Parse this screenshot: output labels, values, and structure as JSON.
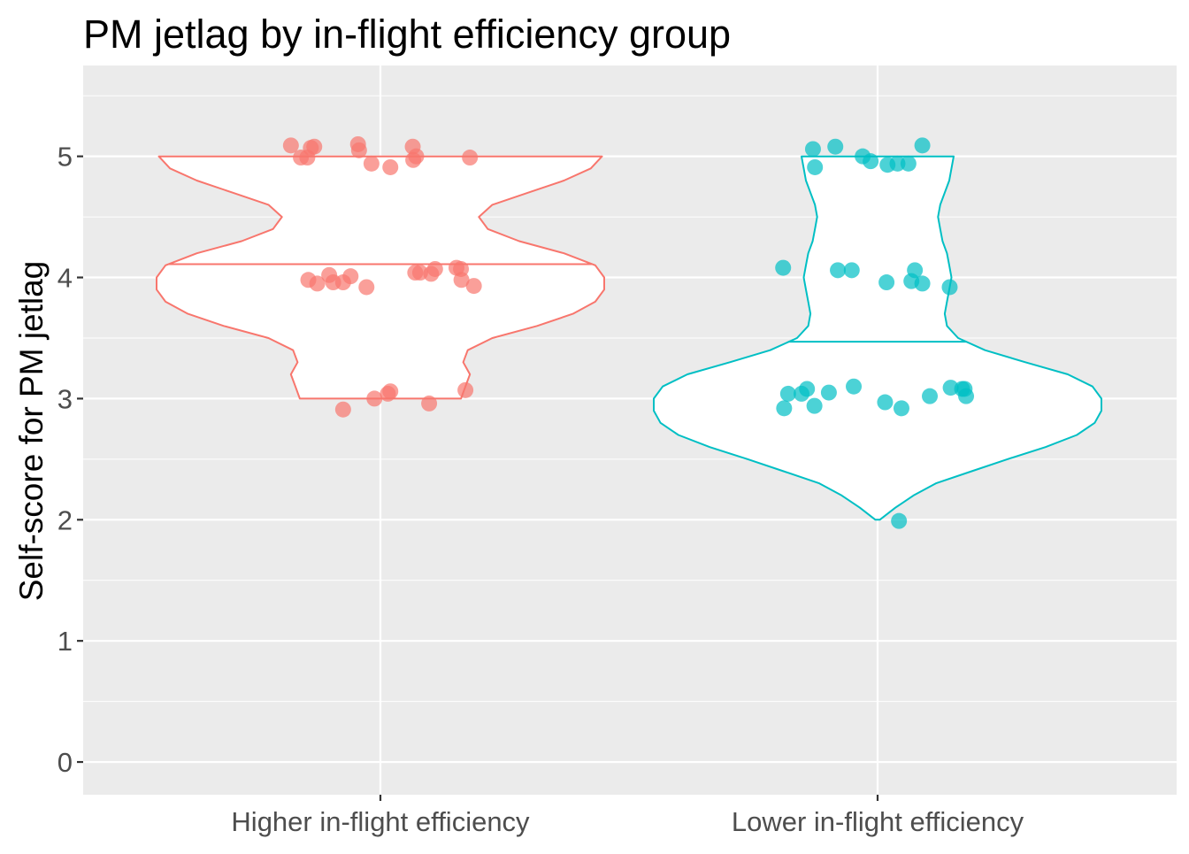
{
  "chart_data": {
    "type": "violin",
    "title": "PM jetlag by in-flight efficiency group",
    "xlabel": "",
    "ylabel": "Self-score for PM jetlag",
    "ylim": [
      -0.27,
      5.75
    ],
    "yticks": [
      0,
      1,
      2,
      3,
      4,
      5
    ],
    "categories": [
      "Higher in-flight efficiency",
      "Lower in-flight efficiency"
    ],
    "grid": true,
    "legend": "none",
    "series": [
      {
        "category": "Higher in-flight efficiency",
        "color": "#F8766D",
        "min": 3,
        "max": 5,
        "median": 4.11,
        "density_profile": [
          [
            3.0,
            0.36
          ],
          [
            3.1,
            0.38
          ],
          [
            3.2,
            0.4
          ],
          [
            3.3,
            0.37
          ],
          [
            3.4,
            0.39
          ],
          [
            3.5,
            0.5
          ],
          [
            3.6,
            0.7
          ],
          [
            3.7,
            0.86
          ],
          [
            3.8,
            0.96
          ],
          [
            3.9,
            1.0
          ],
          [
            4.0,
            1.0
          ],
          [
            4.1,
            0.96
          ],
          [
            4.2,
            0.82
          ],
          [
            4.3,
            0.62
          ],
          [
            4.4,
            0.48
          ],
          [
            4.5,
            0.44
          ],
          [
            4.6,
            0.5
          ],
          [
            4.7,
            0.66
          ],
          [
            4.8,
            0.82
          ],
          [
            4.9,
            0.94
          ],
          [
            5.0,
            0.99
          ]
        ],
        "points": [
          {
            "x": -0.18,
            "y": 5.09
          },
          {
            "x": -0.16,
            "y": 4.99
          },
          {
            "x": -0.147,
            "y": 4.99
          },
          {
            "x": -0.14,
            "y": 5.07
          },
          {
            "x": -0.133,
            "y": 5.08
          },
          {
            "x": -0.045,
            "y": 5.1
          },
          {
            "x": -0.043,
            "y": 5.05
          },
          {
            "x": -0.018,
            "y": 4.94
          },
          {
            "x": 0.02,
            "y": 4.91
          },
          {
            "x": 0.065,
            "y": 5.08
          },
          {
            "x": 0.066,
            "y": 4.97
          },
          {
            "x": 0.072,
            "y": 5.0
          },
          {
            "x": 0.18,
            "y": 4.99
          },
          {
            "x": -0.145,
            "y": 3.98
          },
          {
            "x": -0.127,
            "y": 3.95
          },
          {
            "x": -0.103,
            "y": 4.02
          },
          {
            "x": -0.095,
            "y": 3.96
          },
          {
            "x": -0.075,
            "y": 3.96
          },
          {
            "x": -0.06,
            "y": 4.01
          },
          {
            "x": -0.028,
            "y": 3.92
          },
          {
            "x": 0.07,
            "y": 4.04
          },
          {
            "x": 0.08,
            "y": 4.04
          },
          {
            "x": 0.102,
            "y": 4.03
          },
          {
            "x": 0.11,
            "y": 4.07
          },
          {
            "x": 0.153,
            "y": 4.08
          },
          {
            "x": 0.162,
            "y": 4.07
          },
          {
            "x": 0.163,
            "y": 3.98
          },
          {
            "x": 0.188,
            "y": 3.93
          },
          {
            "x": -0.075,
            "y": 2.91
          },
          {
            "x": -0.012,
            "y": 3.0
          },
          {
            "x": 0.015,
            "y": 3.04
          },
          {
            "x": 0.02,
            "y": 3.06
          },
          {
            "x": 0.098,
            "y": 2.96
          },
          {
            "x": 0.171,
            "y": 3.07
          }
        ]
      },
      {
        "category": "Lower in-flight efficiency",
        "color": "#00BFC4",
        "min": 2,
        "max": 5,
        "median": 3.47,
        "density_profile": [
          [
            2.0,
            0.01
          ],
          [
            2.1,
            0.08
          ],
          [
            2.2,
            0.16
          ],
          [
            2.3,
            0.26
          ],
          [
            2.4,
            0.42
          ],
          [
            2.5,
            0.58
          ],
          [
            2.6,
            0.75
          ],
          [
            2.7,
            0.89
          ],
          [
            2.8,
            0.97
          ],
          [
            2.9,
            1.0
          ],
          [
            3.0,
            1.0
          ],
          [
            3.1,
            0.96
          ],
          [
            3.2,
            0.85
          ],
          [
            3.3,
            0.66
          ],
          [
            3.4,
            0.48
          ],
          [
            3.5,
            0.36
          ],
          [
            3.6,
            0.31
          ],
          [
            3.7,
            0.3
          ],
          [
            3.8,
            0.31
          ],
          [
            3.9,
            0.32
          ],
          [
            4.0,
            0.33
          ],
          [
            4.1,
            0.32
          ],
          [
            4.2,
            0.31
          ],
          [
            4.3,
            0.29
          ],
          [
            4.4,
            0.28
          ],
          [
            4.5,
            0.27
          ],
          [
            4.6,
            0.28
          ],
          [
            4.7,
            0.3
          ],
          [
            4.8,
            0.32
          ],
          [
            4.9,
            0.33
          ],
          [
            5.0,
            0.34
          ]
        ],
        "points": [
          {
            "x": -0.13,
            "y": 5.06
          },
          {
            "x": -0.126,
            "y": 4.91
          },
          {
            "x": -0.085,
            "y": 5.08
          },
          {
            "x": -0.03,
            "y": 5.0
          },
          {
            "x": -0.014,
            "y": 4.96
          },
          {
            "x": 0.02,
            "y": 4.93
          },
          {
            "x": 0.04,
            "y": 4.94
          },
          {
            "x": 0.062,
            "y": 4.94
          },
          {
            "x": 0.09,
            "y": 5.09
          },
          {
            "x": -0.19,
            "y": 4.08
          },
          {
            "x": -0.08,
            "y": 4.06
          },
          {
            "x": -0.052,
            "y": 4.06
          },
          {
            "x": 0.018,
            "y": 3.96
          },
          {
            "x": 0.068,
            "y": 3.97
          },
          {
            "x": 0.075,
            "y": 4.06
          },
          {
            "x": 0.09,
            "y": 3.95
          },
          {
            "x": 0.145,
            "y": 3.92
          },
          {
            "x": -0.188,
            "y": 2.92
          },
          {
            "x": -0.18,
            "y": 3.04
          },
          {
            "x": -0.153,
            "y": 3.04
          },
          {
            "x": -0.142,
            "y": 3.08
          },
          {
            "x": -0.127,
            "y": 2.94
          },
          {
            "x": -0.098,
            "y": 3.05
          },
          {
            "x": -0.048,
            "y": 3.1
          },
          {
            "x": 0.015,
            "y": 2.97
          },
          {
            "x": 0.048,
            "y": 2.92
          },
          {
            "x": 0.105,
            "y": 3.02
          },
          {
            "x": 0.147,
            "y": 3.09
          },
          {
            "x": 0.17,
            "y": 3.08
          },
          {
            "x": 0.175,
            "y": 3.08
          },
          {
            "x": 0.178,
            "y": 3.02
          },
          {
            "x": 0.043,
            "y": 1.99
          }
        ]
      }
    ]
  }
}
